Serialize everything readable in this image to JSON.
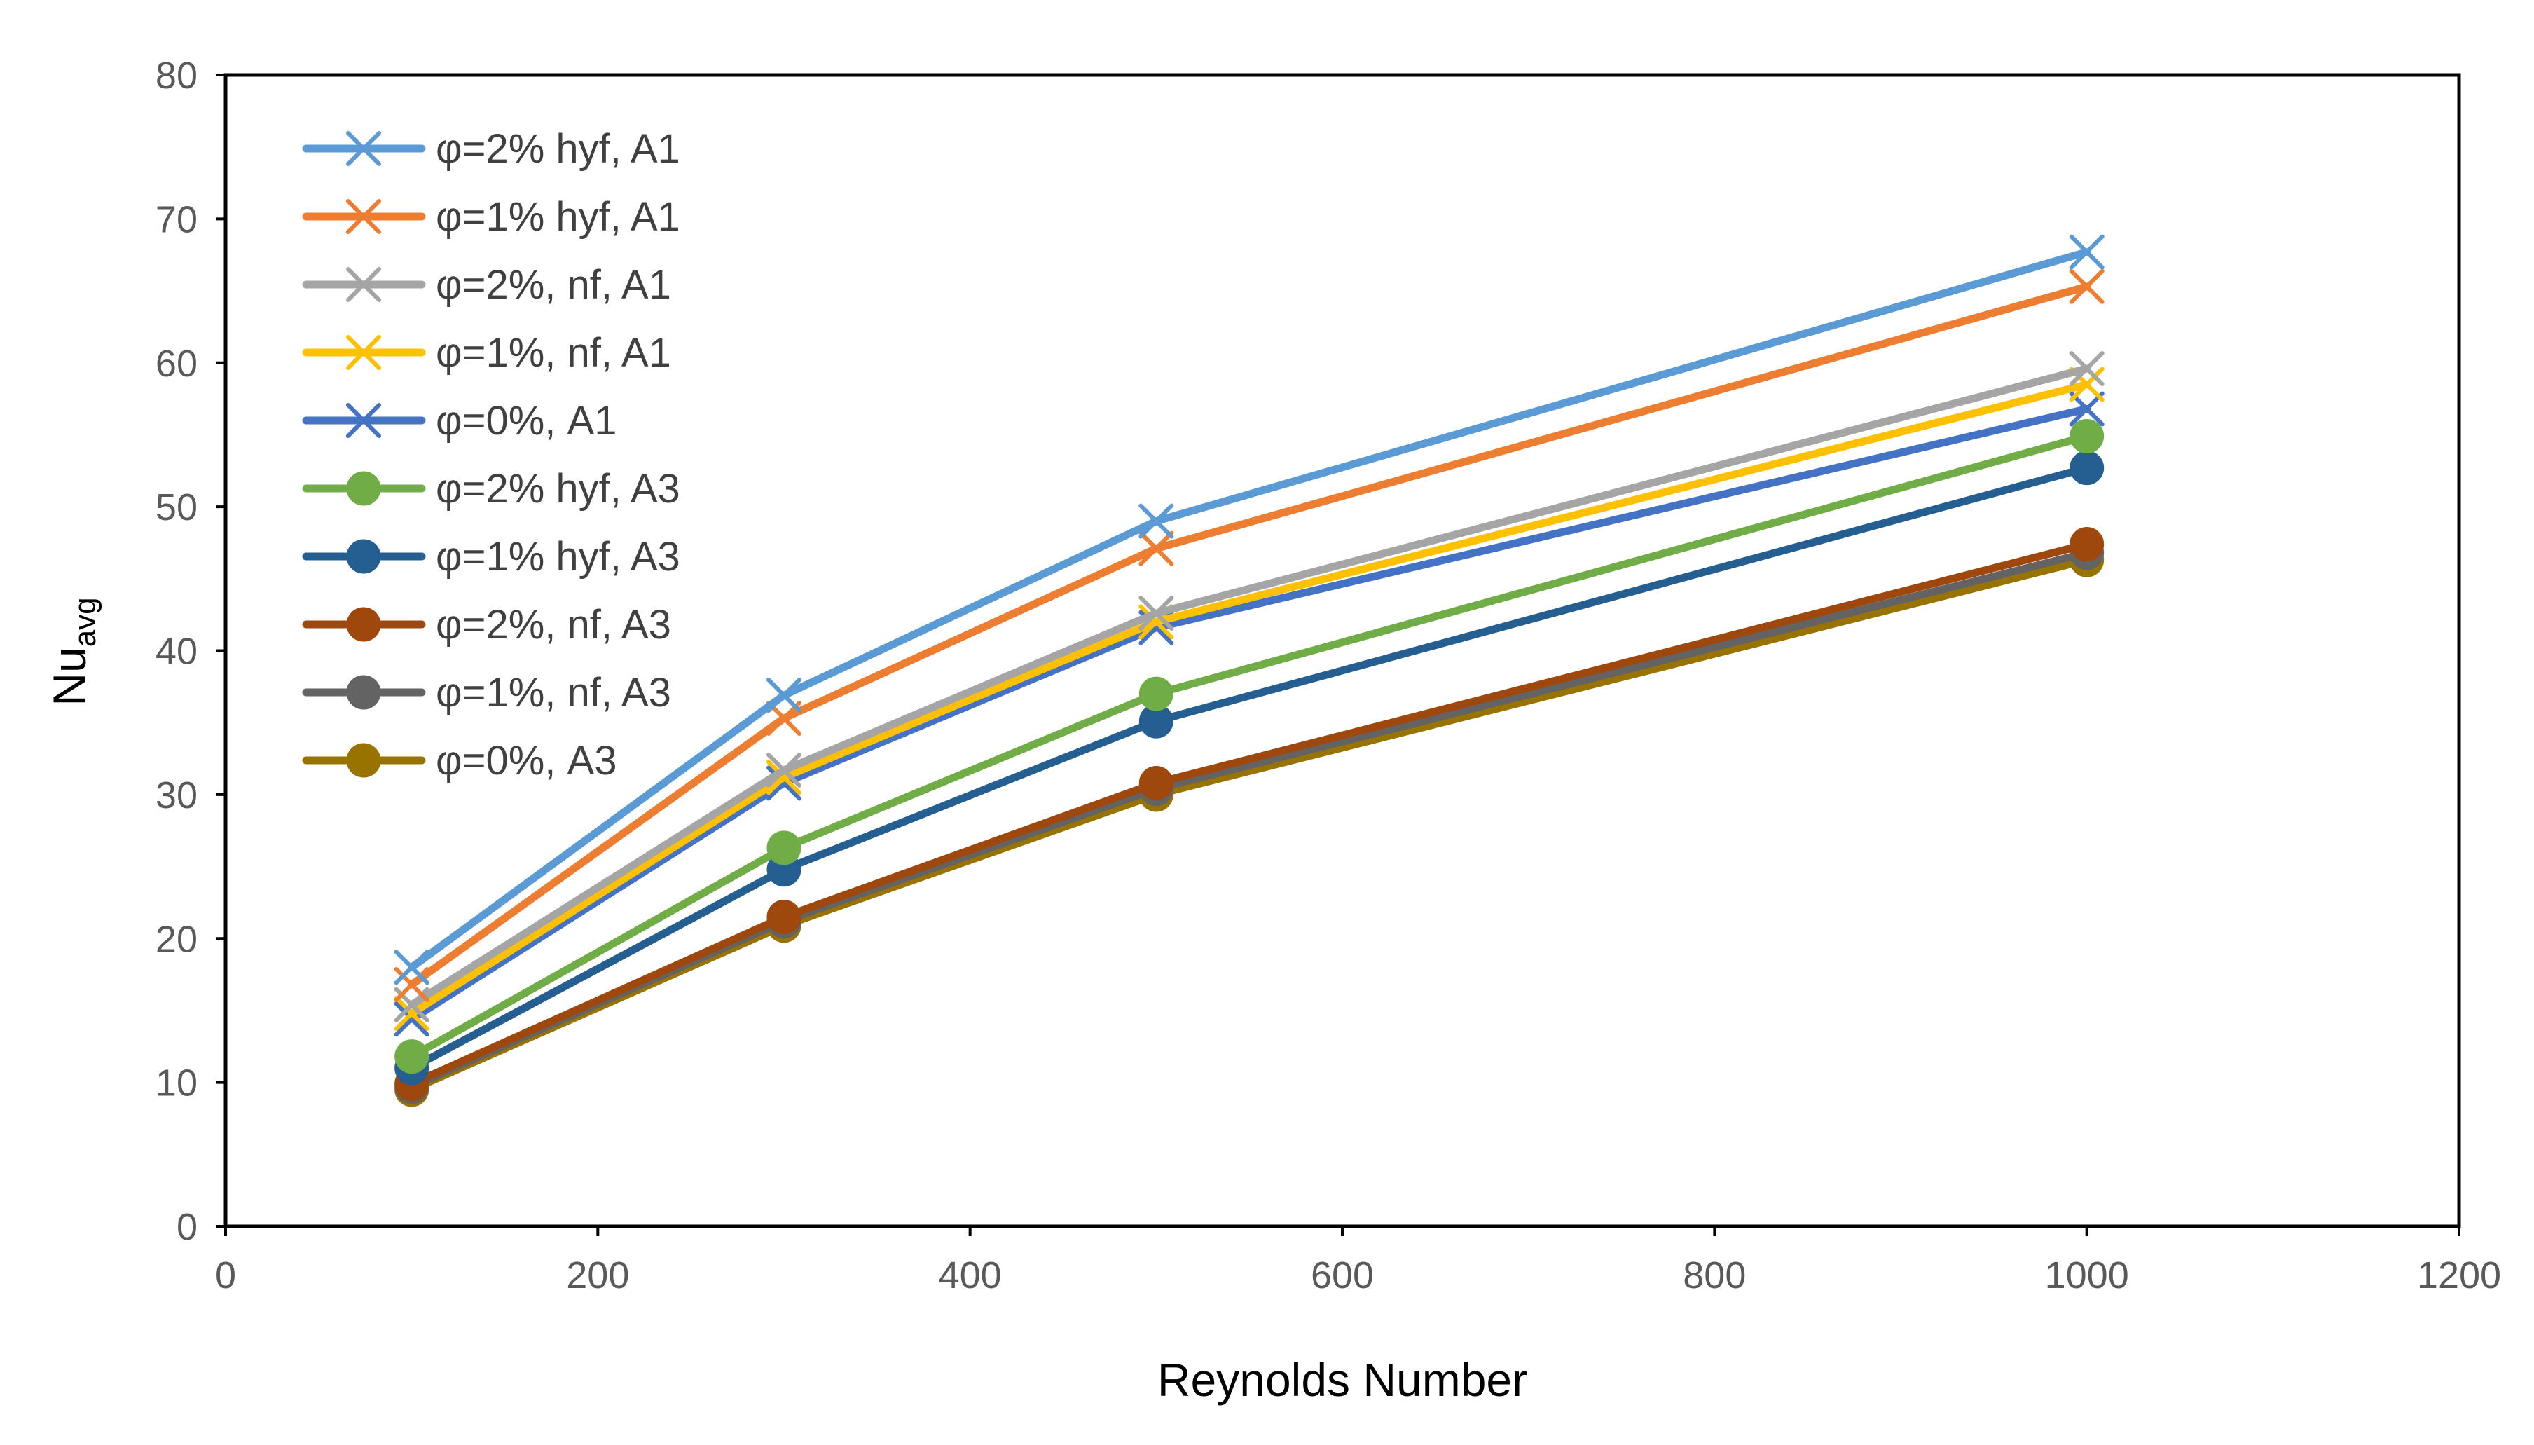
{
  "chart_data": {
    "type": "line",
    "xlabel": "Reynolds Number",
    "ylabel_main": "Nu",
    "ylabel_sub": "avg",
    "xlim": [
      0,
      1200
    ],
    "ylim": [
      0,
      80
    ],
    "xticks": [
      0,
      200,
      400,
      600,
      800,
      1000,
      1200
    ],
    "yticks": [
      0,
      10,
      20,
      30,
      40,
      50,
      60,
      70,
      80
    ],
    "grid": false,
    "legend_position": "top-left",
    "x": [
      100,
      300,
      500,
      1000
    ],
    "series": [
      {
        "name": "φ=2% hyf, A1",
        "marker": "x",
        "color": "#5B9BD5",
        "values": [
          18.0,
          36.9,
          49.0,
          67.7
        ]
      },
      {
        "name": "φ=1% hyf, A1",
        "marker": "x",
        "color": "#ED7D31",
        "values": [
          16.8,
          35.3,
          47.1,
          65.3
        ]
      },
      {
        "name": "φ=2%, nf, A1",
        "marker": "x",
        "color": "#A5A5A5",
        "values": [
          15.4,
          31.7,
          42.6,
          59.6
        ]
      },
      {
        "name": "φ=1%, nf, A1",
        "marker": "x",
        "color": "#FFC000",
        "values": [
          14.8,
          31.2,
          42.0,
          58.5
        ]
      },
      {
        "name": "φ=0%, A1",
        "marker": "x",
        "color": "#4472C4",
        "values": [
          14.4,
          30.8,
          41.6,
          56.8
        ]
      },
      {
        "name": "φ=2% hyf, A3",
        "marker": "circle",
        "color": "#70AD47",
        "values": [
          11.8,
          26.3,
          37.0,
          54.9
        ]
      },
      {
        "name": "φ=1% hyf, A3",
        "marker": "circle",
        "color": "#255E91",
        "values": [
          11.0,
          24.8,
          35.1,
          52.7
        ]
      },
      {
        "name": "φ=2%, nf, A3",
        "marker": "circle",
        "color": "#9E480E",
        "values": [
          9.9,
          21.5,
          30.8,
          47.4
        ]
      },
      {
        "name": "φ=1%, nf, A3",
        "marker": "circle",
        "color": "#636363",
        "values": [
          9.7,
          21.2,
          30.4,
          46.8
        ]
      },
      {
        "name": "φ=0%, A3",
        "marker": "circle",
        "color": "#997300",
        "values": [
          9.5,
          20.9,
          30.0,
          46.3
        ]
      }
    ]
  }
}
